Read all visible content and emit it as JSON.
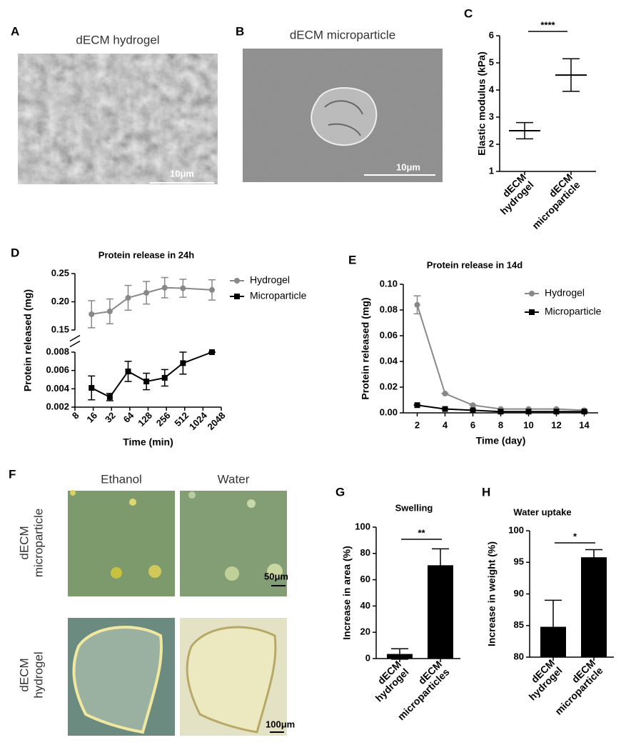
{
  "panel_labels": [
    "A",
    "B",
    "C",
    "D",
    "E",
    "F",
    "G",
    "H"
  ],
  "images": {
    "A": {
      "title": "dECM hydrogel",
      "scale_bar": "10μm"
    },
    "B": {
      "title": "dECM  microparticle",
      "scale_bar": "10μm"
    },
    "F": {
      "columns": [
        "Ethanol",
        "Water"
      ],
      "rows": [
        [
          "dECM",
          "microparticle"
        ],
        [
          "dECM",
          "hydrogel"
        ]
      ],
      "scale_bars": [
        "50μm",
        "100μm"
      ]
    }
  },
  "chart_data": [
    {
      "type": "errorbar",
      "ylabel": "Elastic modulus (kPa)",
      "categories": [
        [
          "dECM",
          "hydrogel"
        ],
        [
          "dECM",
          "microparticle"
        ]
      ],
      "values": [
        2.5,
        4.55
      ],
      "errors": [
        0.3,
        0.6
      ],
      "color": "#000000",
      "ylim": [
        1,
        6
      ],
      "yticks": [
        1,
        2,
        3,
        4,
        5,
        6
      ],
      "annotation": "****"
    },
    {
      "type": "line",
      "title": "Protein release in 24h",
      "xlabel": "Time (min)",
      "ylabel": "Protein released (mg)",
      "xscale": "log2",
      "x": [
        15,
        30,
        60,
        120,
        240,
        480,
        1440
      ],
      "xlim": [
        8,
        2048
      ],
      "xticks": [
        8,
        16,
        32,
        64,
        128,
        256,
        512,
        1024,
        2048
      ],
      "ylim": [
        0.002,
        0.008
      ],
      "yticks": [
        0.002,
        0.004,
        0.006,
        0.008
      ],
      "y2lim": [
        0.15,
        0.25
      ],
      "y2ticks": [
        0.15,
        {
          "value": 0.2,
          "label": "0.20"
        },
        0.25
      ],
      "series": [
        {
          "name": "Hydrogel",
          "color": "#888888",
          "marker": "circle",
          "axis": "y2",
          "values": [
            0.178,
            0.183,
            0.207,
            0.216,
            0.225,
            0.224,
            0.221
          ],
          "errors": [
            0.024,
            0.022,
            0.022,
            0.02,
            0.018,
            0.016,
            0.018
          ]
        },
        {
          "name": "Microparticle",
          "color": "#000000",
          "marker": "square",
          "values": [
            0.0041,
            0.0031,
            0.0059,
            0.0048,
            0.0052,
            0.0068,
            0.008
          ],
          "errors": [
            0.0013,
            0.0004,
            0.0011,
            0.0009,
            0.0009,
            0.0012,
            0
          ]
        }
      ]
    },
    {
      "type": "line",
      "title": "Protein release in 14d",
      "xlabel": "Time (day)",
      "ylabel": "Protein released (mg)",
      "x": [
        2,
        4,
        6,
        8,
        10,
        12,
        14
      ],
      "xlim": [
        1,
        15
      ],
      "xticks": [
        2,
        4,
        6,
        8,
        10,
        12,
        14
      ],
      "ylim": [
        0,
        0.1
      ],
      "yticks": [
        {
          "value": 0,
          "label": "0.00"
        },
        0.02,
        0.04,
        0.06,
        0.08,
        {
          "value": 0.1,
          "label": "0.10"
        }
      ],
      "series": [
        {
          "name": "Hydrogel",
          "color": "#888888",
          "marker": "circle",
          "values": [
            0.084,
            0.015,
            0.006,
            0.003,
            0.003,
            0.003,
            0.002
          ],
          "errors": [
            0.007,
            0,
            0,
            0,
            0,
            0,
            0
          ]
        },
        {
          "name": "Microparticle",
          "color": "#000000",
          "marker": "square",
          "values": [
            0.006,
            0.003,
            0.002,
            0.001,
            0.001,
            0.001,
            0.001
          ],
          "errors": [
            0,
            0,
            0,
            0,
            0,
            0,
            0
          ]
        }
      ]
    },
    {
      "type": "bar",
      "title": "Swelling",
      "ylabel": "Increase in area (%)",
      "categories": [
        [
          "dECM",
          "hydrogel"
        ],
        [
          "dECM",
          "microparticles"
        ]
      ],
      "values": [
        3.5,
        71
      ],
      "errors": [
        4,
        12.5
      ],
      "color": "#000000",
      "ylim": [
        0,
        100
      ],
      "yticks": [
        0,
        20,
        40,
        60,
        80,
        100
      ],
      "annotation": "**"
    },
    {
      "type": "bar",
      "title": "Water uptake",
      "ylabel": "Increase in weight (%)",
      "categories": [
        [
          "dECM",
          "hydrogel"
        ],
        [
          "dECM",
          "microparticle"
        ]
      ],
      "values": [
        84.8,
        95.8
      ],
      "errors": [
        4.2,
        1.2
      ],
      "color": "#000000",
      "ylim": [
        80,
        100
      ],
      "yticks": [
        80,
        85,
        90,
        95,
        100
      ],
      "annotation": "*"
    }
  ]
}
